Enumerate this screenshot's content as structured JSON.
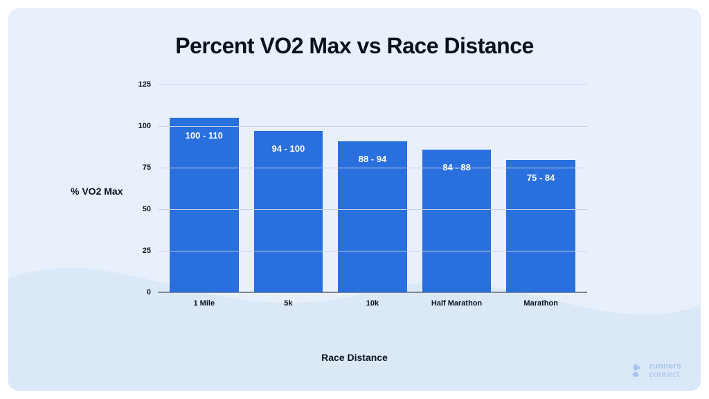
{
  "chart": {
    "type": "bar",
    "title": "Percent VO2 Max vs Race Distance",
    "title_fontsize": 32,
    "title_color": "#09111f",
    "ylabel": "% VO2 Max",
    "xlabel": "Race Distance",
    "label_fontsize": 14,
    "ylim": [
      0,
      125
    ],
    "ytick_step": 25,
    "yticks": [
      0,
      25,
      50,
      75,
      100,
      125
    ],
    "grid_color": "#c9d2df",
    "baseline_color": "#7e8896",
    "bar_color": "#296fdd",
    "bar_width": 0.82,
    "bar_label_color": "#ffffff",
    "bar_label_fontsize": 13,
    "tick_fontsize": 11,
    "categories": [
      "1 Mile",
      "5k",
      "10k",
      "Half Marathon",
      "Marathon"
    ],
    "values": [
      105,
      97,
      91,
      86,
      79.5
    ],
    "bar_labels": [
      "100 - 110",
      "94 - 100",
      "88 - 94",
      "84 - 88",
      "75 - 84"
    ],
    "card_bg_top": "#e7f0fb",
    "card_bg_wave": "#dbe8f7",
    "card_radius": 14,
    "page_bg": "#ffffff"
  },
  "logo": {
    "line1": "runners",
    "line2": "connect",
    "color": "#a7c3ee"
  }
}
